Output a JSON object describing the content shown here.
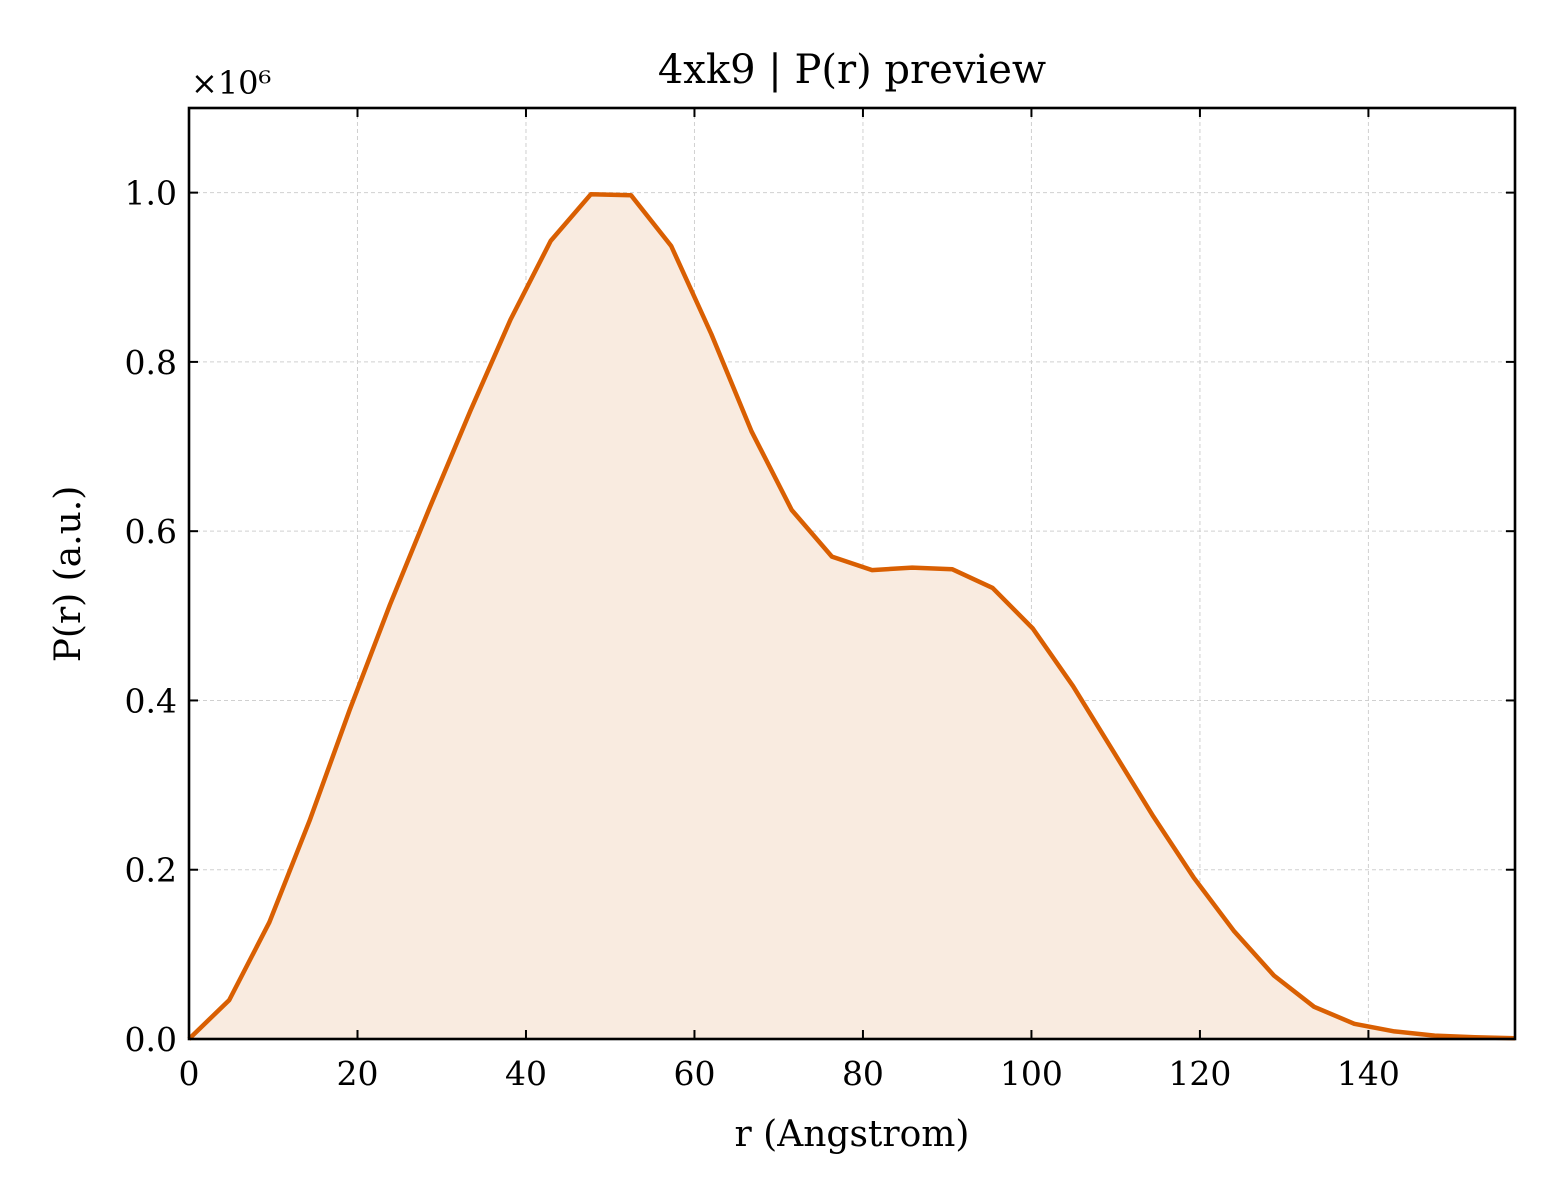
{
  "chart_data": {
    "type": "area",
    "title": "4xk9 | P(r) preview",
    "xlabel": "r (Angstrom)",
    "ylabel": "P(r) (a.u.)",
    "y_multiplier_label": "×10⁶",
    "xlim": [
      0,
      157.4
    ],
    "ylim": [
      0,
      1.1
    ],
    "xticks": [
      0,
      20,
      40,
      60,
      80,
      100,
      120,
      140
    ],
    "yticks": [
      0.0,
      0.2,
      0.4,
      0.6,
      0.8,
      1.0
    ],
    "xtick_labels": [
      "0",
      "20",
      "40",
      "60",
      "80",
      "100",
      "120",
      "140"
    ],
    "ytick_labels": [
      "0.0",
      "0.2",
      "0.4",
      "0.6",
      "0.8",
      "1.0"
    ],
    "grid": true,
    "line_color": "#d95f02",
    "fill_color": "#f9ebe0",
    "series": [
      {
        "x": [
          0,
          4.77,
          9.54,
          14.31,
          19.08,
          23.85,
          28.62,
          33.39,
          38.16,
          42.93,
          47.7,
          52.47,
          57.24,
          62.0,
          66.77,
          71.54,
          76.31,
          81.08,
          85.85,
          90.62,
          95.39,
          100.16,
          104.93,
          109.7,
          114.47,
          119.24,
          124.01,
          128.78,
          133.55,
          138.32,
          143.09,
          147.86,
          152.63,
          157.4
        ],
        "y": [
          0.0,
          0.046,
          0.138,
          0.258,
          0.389,
          0.513,
          0.629,
          0.742,
          0.85,
          0.943,
          0.998,
          0.997,
          0.937,
          0.833,
          0.718,
          0.625,
          0.57,
          0.554,
          0.557,
          0.555,
          0.533,
          0.485,
          0.417,
          0.34,
          0.263,
          0.191,
          0.128,
          0.075,
          0.038,
          0.018,
          0.009,
          0.004,
          0.002,
          0.001
        ]
      }
    ]
  }
}
